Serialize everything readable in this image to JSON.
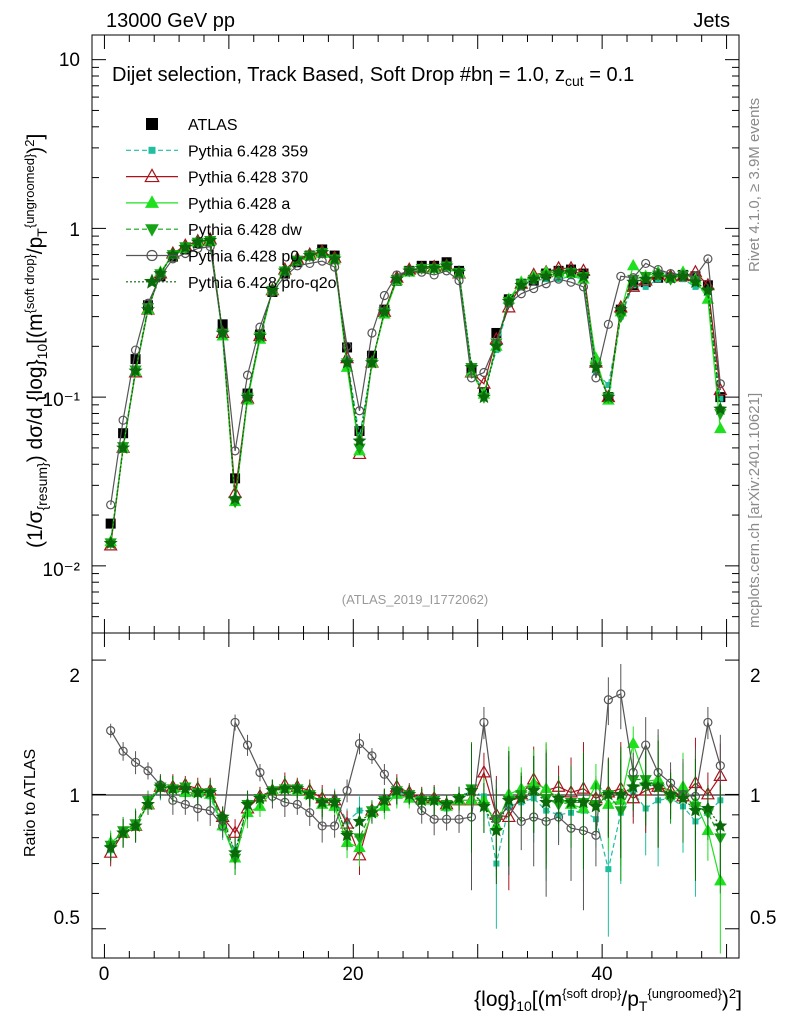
{
  "header": {
    "energy_label": "13000 GeV pp",
    "category_label": "Jets"
  },
  "side_labels": {
    "rivet": "Rivet 4.1.0, ≥ 3.9M events",
    "source": "mcplots.cern.ch [arXiv:2401.10621]"
  },
  "colors": {
    "atlas": "#000000",
    "p359": "#1fbf9f",
    "p370": "#a8141d",
    "pa": "#1ee01e",
    "pdw": "#16a316",
    "pp0": "#555555",
    "ppro": "#0a6a0a"
  },
  "chart_data": [
    {
      "panel": "main",
      "type": "scatter",
      "title": "Dijet selection, Track Based, Soft Drop #bη = 1.0, z_cut = 0.1",
      "analysis_id": "(ATLAS_2019_I1772062)",
      "ylabel": "(1/σ_{resum}) dσ/d {log}_10[(m^{soft drop}/p_T^{ungroomed})^2]",
      "yscale": "log",
      "ylim": [
        0.004,
        14
      ],
      "xlim": [
        -1,
        51
      ],
      "ytick_labels": [
        "10",
        "1",
        "10⁻¹",
        "10⁻²"
      ],
      "x": [
        0.5,
        1.5,
        2.5,
        3.5,
        4.5,
        5.5,
        6.5,
        7.5,
        8.5,
        9.5,
        10.5,
        11.5,
        12.5,
        13.5,
        14.5,
        15.5,
        16.5,
        17.5,
        18.5,
        19.5,
        20.5,
        21.5,
        22.5,
        23.5,
        24.5,
        25.5,
        26.5,
        27.5,
        28.5,
        29.5,
        30.5,
        31.5,
        32.5,
        33.5,
        34.5,
        35.5,
        36.5,
        37.5,
        38.5,
        39.5,
        40.5,
        41.5,
        42.5,
        43.5,
        44.5,
        45.5,
        46.5,
        47.5,
        48.5,
        49.5
      ],
      "series": [
        {
          "name": "ATLAS",
          "key": "atlas",
          "values": [
            0.0178,
            0.0611,
            0.168,
            0.35,
            0.52,
            0.68,
            0.75,
            0.82,
            0.84,
            0.27,
            0.033,
            0.105,
            0.235,
            0.42,
            0.54,
            0.63,
            0.69,
            0.75,
            0.69,
            0.197,
            0.063,
            0.176,
            0.33,
            0.49,
            0.56,
            0.6,
            0.6,
            0.63,
            0.56,
            0.145,
            0.107,
            0.24,
            0.38,
            0.47,
            0.49,
            0.54,
            0.56,
            0.57,
            0.54,
            0.16,
            0.1,
            0.33,
            0.46,
            0.48,
            0.51,
            0.51,
            0.53,
            0.52,
            0.46,
            0.1
          ]
        },
        {
          "name": "Pythia 6.428 359",
          "key": "p359",
          "values": [
            0.0134,
            0.05,
            0.14,
            0.33,
            0.54,
            0.7,
            0.76,
            0.83,
            0.83,
            0.23,
            0.025,
            0.099,
            0.23,
            0.43,
            0.56,
            0.65,
            0.69,
            0.71,
            0.67,
            0.17,
            0.058,
            0.16,
            0.32,
            0.5,
            0.56,
            0.58,
            0.58,
            0.58,
            0.55,
            0.15,
            0.106,
            0.19,
            0.36,
            0.45,
            0.49,
            0.5,
            0.5,
            0.52,
            0.5,
            0.14,
            0.118,
            0.3,
            0.46,
            0.45,
            0.5,
            0.5,
            0.5,
            0.45,
            0.42,
            0.098
          ]
        },
        {
          "name": "Pythia 6.428 370",
          "key": "p370",
          "values": [
            0.0132,
            0.05,
            0.14,
            0.33,
            0.54,
            0.71,
            0.79,
            0.84,
            0.86,
            0.24,
            0.027,
            0.098,
            0.23,
            0.43,
            0.57,
            0.66,
            0.7,
            0.73,
            0.67,
            0.17,
            0.046,
            0.16,
            0.32,
            0.51,
            0.57,
            0.58,
            0.59,
            0.6,
            0.54,
            0.14,
            0.12,
            0.22,
            0.34,
            0.47,
            0.53,
            0.55,
            0.58,
            0.58,
            0.56,
            0.16,
            0.1,
            0.34,
            0.45,
            0.49,
            0.53,
            0.52,
            0.52,
            0.55,
            0.46,
            0.11
          ]
        },
        {
          "name": "Pythia 6.428 a",
          "key": "pa",
          "values": [
            0.0139,
            0.05,
            0.142,
            0.33,
            0.55,
            0.7,
            0.76,
            0.83,
            0.84,
            0.23,
            0.024,
            0.096,
            0.22,
            0.43,
            0.56,
            0.64,
            0.69,
            0.71,
            0.65,
            0.15,
            0.048,
            0.16,
            0.31,
            0.49,
            0.55,
            0.58,
            0.58,
            0.59,
            0.54,
            0.14,
            0.104,
            0.2,
            0.38,
            0.48,
            0.52,
            0.55,
            0.55,
            0.54,
            0.5,
            0.17,
            0.096,
            0.32,
            0.6,
            0.52,
            0.55,
            0.51,
            0.55,
            0.5,
            0.38,
            0.065
          ]
        },
        {
          "name": "Pythia 6.428 dw",
          "key": "pdw",
          "values": [
            0.0137,
            0.051,
            0.145,
            0.34,
            0.54,
            0.7,
            0.78,
            0.83,
            0.85,
            0.24,
            0.024,
            0.1,
            0.23,
            0.43,
            0.56,
            0.65,
            0.69,
            0.72,
            0.66,
            0.16,
            0.05,
            0.16,
            0.32,
            0.5,
            0.56,
            0.58,
            0.58,
            0.6,
            0.55,
            0.15,
            0.1,
            0.21,
            0.37,
            0.47,
            0.5,
            0.53,
            0.53,
            0.55,
            0.52,
            0.15,
            0.1,
            0.3,
            0.5,
            0.52,
            0.53,
            0.5,
            0.53,
            0.49,
            0.42,
            0.08
          ]
        },
        {
          "name": "Pythia 6.428 p0",
          "key": "pp0",
          "values": [
            0.023,
            0.073,
            0.19,
            0.36,
            0.52,
            0.66,
            0.71,
            0.76,
            0.78,
            0.24,
            0.048,
            0.135,
            0.26,
            0.42,
            0.52,
            0.6,
            0.62,
            0.64,
            0.59,
            0.2,
            0.083,
            0.24,
            0.4,
            0.53,
            0.56,
            0.55,
            0.53,
            0.56,
            0.49,
            0.13,
            0.14,
            0.21,
            0.36,
            0.41,
            0.44,
            0.47,
            0.5,
            0.48,
            0.45,
            0.13,
            0.27,
            0.52,
            0.51,
            0.62,
            0.57,
            0.54,
            0.53,
            0.52,
            0.66,
            0.12
          ]
        },
        {
          "name": "Pythia 6.428 pro-q2o",
          "key": "ppro",
          "values": [
            0.0136,
            0.05,
            0.143,
            0.33,
            0.54,
            0.7,
            0.77,
            0.83,
            0.85,
            0.24,
            0.025,
            0.1,
            0.23,
            0.43,
            0.56,
            0.65,
            0.69,
            0.72,
            0.66,
            0.16,
            0.055,
            0.16,
            0.32,
            0.5,
            0.56,
            0.58,
            0.58,
            0.6,
            0.55,
            0.15,
            0.1,
            0.2,
            0.37,
            0.46,
            0.5,
            0.52,
            0.55,
            0.55,
            0.52,
            0.15,
            0.1,
            0.33,
            0.48,
            0.5,
            0.53,
            0.51,
            0.52,
            0.48,
            0.43,
            0.085
          ]
        }
      ]
    },
    {
      "panel": "ratio",
      "type": "scatter",
      "ylabel": "Ratio to ATLAS",
      "xlabel": "{log}_10[(m^{soft drop}/p_T^{ungroomed})^2]",
      "ylim": [
        0.43,
        2.3
      ],
      "xlim": [
        -1,
        51
      ],
      "ytick_labels": [
        "0.5",
        "1",
        "2"
      ],
      "xtick_labels": [
        "0",
        "20",
        "40"
      ],
      "x": [
        0.5,
        1.5,
        2.5,
        3.5,
        4.5,
        5.5,
        6.5,
        7.5,
        8.5,
        9.5,
        10.5,
        11.5,
        12.5,
        13.5,
        14.5,
        15.5,
        16.5,
        17.5,
        18.5,
        19.5,
        20.5,
        21.5,
        22.5,
        23.5,
        24.5,
        25.5,
        26.5,
        27.5,
        28.5,
        29.5,
        30.5,
        31.5,
        32.5,
        33.5,
        34.5,
        35.5,
        36.5,
        37.5,
        38.5,
        39.5,
        40.5,
        41.5,
        42.5,
        43.5,
        44.5,
        45.5,
        46.5,
        47.5,
        48.5,
        49.5
      ],
      "series": [
        {
          "name": "Pythia 6.428 359",
          "key": "p359",
          "values": [
            0.75,
            0.82,
            0.85,
            0.95,
            1.03,
            1.03,
            1.01,
            1.01,
            0.99,
            0.84,
            0.75,
            0.94,
            0.98,
            1.02,
            1.03,
            1.03,
            1.0,
            0.95,
            0.98,
            0.87,
            0.92,
            0.92,
            0.96,
            1.01,
            1.0,
            0.97,
            0.97,
            0.93,
            0.98,
            1.02,
            0.99,
            0.7,
            0.94,
            0.96,
            0.98,
            0.92,
            0.9,
            0.91,
            0.92,
            0.88,
            0.68,
            0.91,
            1.01,
            0.93,
            0.97,
            0.98,
            0.94,
            0.87,
            0.91,
            0.97
          ]
        },
        {
          "name": "Pythia 6.428 370",
          "key": "p370",
          "values": [
            0.74,
            0.82,
            0.85,
            0.95,
            1.04,
            1.04,
            1.05,
            1.03,
            1.02,
            0.89,
            0.82,
            0.93,
            0.99,
            1.02,
            1.05,
            1.04,
            1.02,
            0.98,
            0.97,
            0.86,
            0.73,
            0.92,
            0.97,
            1.04,
            1.01,
            0.98,
            0.98,
            0.95,
            0.97,
            0.97,
            1.12,
            0.9,
            0.89,
            1.0,
            1.08,
            1.02,
            1.04,
            1.01,
            1.03,
            0.98,
            1.01,
            1.03,
            0.98,
            1.02,
            1.04,
            1.02,
            0.99,
            1.06,
            1.0,
            1.1
          ]
        },
        {
          "name": "Pythia 6.428 a",
          "key": "pa",
          "values": [
            0.78,
            0.82,
            0.85,
            0.95,
            1.05,
            1.03,
            1.01,
            1.01,
            1.0,
            0.85,
            0.72,
            0.91,
            0.94,
            1.02,
            1.03,
            1.02,
            1.0,
            0.95,
            0.94,
            0.78,
            0.76,
            0.91,
            0.94,
            1.0,
            0.98,
            0.97,
            0.97,
            0.94,
            0.97,
            0.97,
            0.97,
            0.85,
            1.0,
            1.03,
            1.06,
            1.03,
            0.98,
            0.95,
            0.93,
            1.05,
            0.95,
            0.97,
            1.3,
            1.07,
            1.08,
            1.0,
            1.04,
            0.96,
            0.83,
            0.64
          ]
        },
        {
          "name": "Pythia 6.428 dw",
          "key": "pdw",
          "values": [
            0.77,
            0.83,
            0.86,
            0.97,
            1.04,
            1.03,
            1.04,
            1.01,
            1.01,
            0.87,
            0.72,
            0.95,
            0.98,
            1.02,
            1.03,
            1.03,
            1.0,
            0.96,
            0.96,
            0.81,
            0.8,
            0.92,
            0.97,
            1.02,
            1.0,
            0.97,
            0.97,
            0.95,
            0.98,
            1.03,
            0.94,
            0.88,
            0.97,
            1.0,
            1.02,
            0.98,
            0.95,
            0.96,
            0.96,
            0.95,
            1.0,
            0.92,
            1.08,
            1.08,
            1.04,
            0.98,
            1.0,
            0.94,
            0.91,
            0.8
          ]
        },
        {
          "name": "Pythia 6.428 p0",
          "key": "pp0",
          "values": [
            1.39,
            1.25,
            1.18,
            1.13,
            1.05,
            0.97,
            0.95,
            0.93,
            0.92,
            0.85,
            1.45,
            1.29,
            1.12,
            0.99,
            0.96,
            0.95,
            0.91,
            0.85,
            0.85,
            1.02,
            1.3,
            1.22,
            1.11,
            1.02,
            1.0,
            0.92,
            0.88,
            0.88,
            0.88,
            0.89,
            1.45,
            0.88,
            0.94,
            0.87,
            0.89,
            0.87,
            0.89,
            0.84,
            0.83,
            0.81,
            1.63,
            1.68,
            1.12,
            1.29,
            1.12,
            1.06,
            1.0,
            0.99,
            1.45,
            1.16
          ]
        },
        {
          "name": "Pythia 6.428 pro-q2o",
          "key": "ppro",
          "values": [
            0.76,
            0.82,
            0.85,
            0.95,
            1.04,
            1.03,
            1.03,
            1.01,
            1.01,
            0.89,
            0.74,
            0.95,
            0.98,
            1.02,
            1.03,
            1.03,
            1.0,
            0.96,
            0.96,
            0.81,
            0.87,
            0.91,
            0.97,
            1.02,
            1.0,
            0.97,
            0.97,
            0.95,
            0.98,
            1.02,
            0.94,
            0.83,
            0.97,
            0.98,
            1.02,
            0.96,
            0.98,
            0.96,
            0.96,
            0.94,
            1.0,
            1.0,
            1.04,
            1.05,
            1.04,
            1.0,
            0.98,
            0.92,
            0.93,
            0.85
          ]
        }
      ]
    }
  ]
}
